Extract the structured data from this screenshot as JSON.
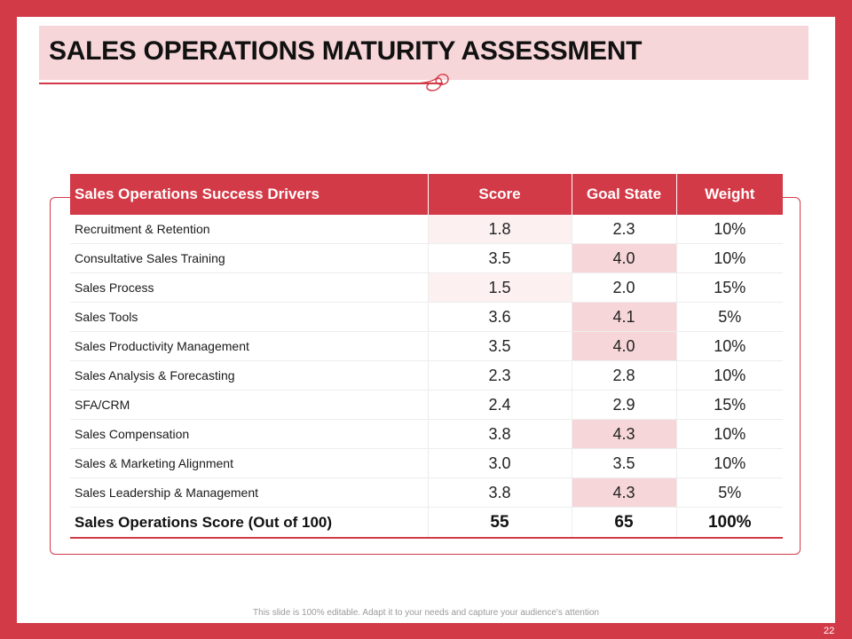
{
  "slide": {
    "title": "SALES OPERATIONS MATURITY ASSESSMENT",
    "footer_note": "This slide is 100% editable. Adapt it to your needs and capture your audience's attention",
    "page_number": "22"
  },
  "colors": {
    "accent": "#d33a48",
    "title_band": "#f7d6d9",
    "highlight": "#f7d6d9",
    "light_tint": "#fcf0f1"
  },
  "table": {
    "headers": [
      "Sales Operations Success Drivers",
      "Score",
      "Goal State",
      "Weight"
    ],
    "rows": [
      {
        "driver": "Recruitment & Retention",
        "score": "1.8",
        "goal": "2.3",
        "weight": "10%"
      },
      {
        "driver": "Consultative Sales Training",
        "score": "3.5",
        "goal": "4.0",
        "weight": "10%"
      },
      {
        "driver": "Sales Process",
        "score": "1.5",
        "goal": "2.0",
        "weight": "15%"
      },
      {
        "driver": "Sales Tools",
        "score": "3.6",
        "goal": "4.1",
        "weight": "5%"
      },
      {
        "driver": "Sales Productivity Management",
        "score": "3.5",
        "goal": "4.0",
        "weight": "10%"
      },
      {
        "driver": "Sales Analysis & Forecasting",
        "score": "2.3",
        "goal": "2.8",
        "weight": "10%"
      },
      {
        "driver": "SFA/CRM",
        "score": "2.4",
        "goal": "2.9",
        "weight": "15%"
      },
      {
        "driver": "Sales Compensation",
        "score": "3.8",
        "goal": "4.3",
        "weight": "10%"
      },
      {
        "driver": "Sales & Marketing Alignment",
        "score": "3.0",
        "goal": "3.5",
        "weight": "10%"
      },
      {
        "driver": "Sales Leadership & Management",
        "score": "3.8",
        "goal": "4.3",
        "weight": "5%"
      }
    ],
    "total": {
      "driver": "Sales Operations Score (Out of 100)",
      "score": "55",
      "goal": "65",
      "weight": "100%"
    }
  }
}
